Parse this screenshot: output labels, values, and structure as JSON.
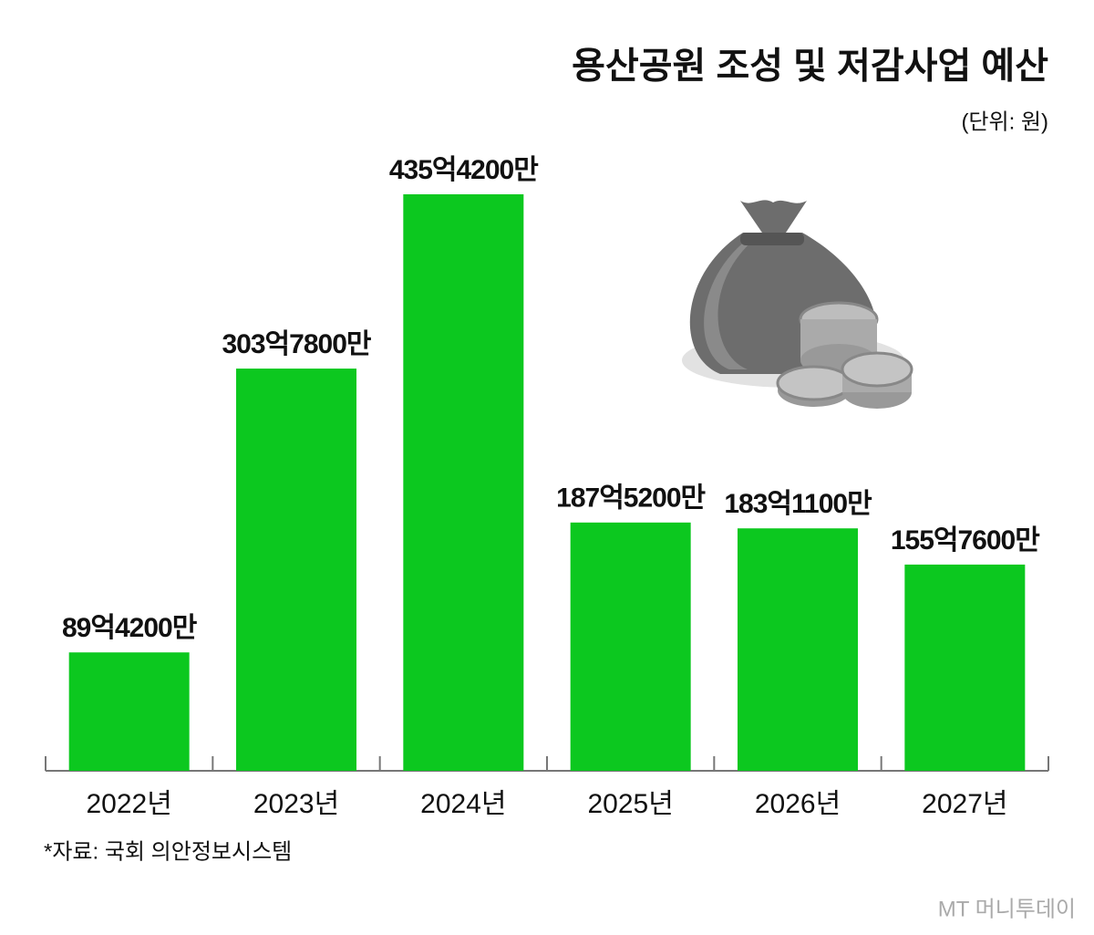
{
  "chart_data": {
    "type": "bar",
    "title": "용산공원 조성 및 저감사업 예산",
    "unit_note": "(단위: 원)",
    "categories": [
      "2022년",
      "2023년",
      "2024년",
      "2025년",
      "2026년",
      "2027년"
    ],
    "values": [
      8942000000,
      30378000000,
      43542000000,
      18752000000,
      18311000000,
      15576000000
    ],
    "value_labels": [
      "89억4200만",
      "303억7800만",
      "435억4200만",
      "187억5200만",
      "183억1100만",
      "155억7600만"
    ],
    "color": "#0cc81f",
    "source": "*자료: 국회 의안정보시스템",
    "watermark": "MT 머니투데이"
  }
}
